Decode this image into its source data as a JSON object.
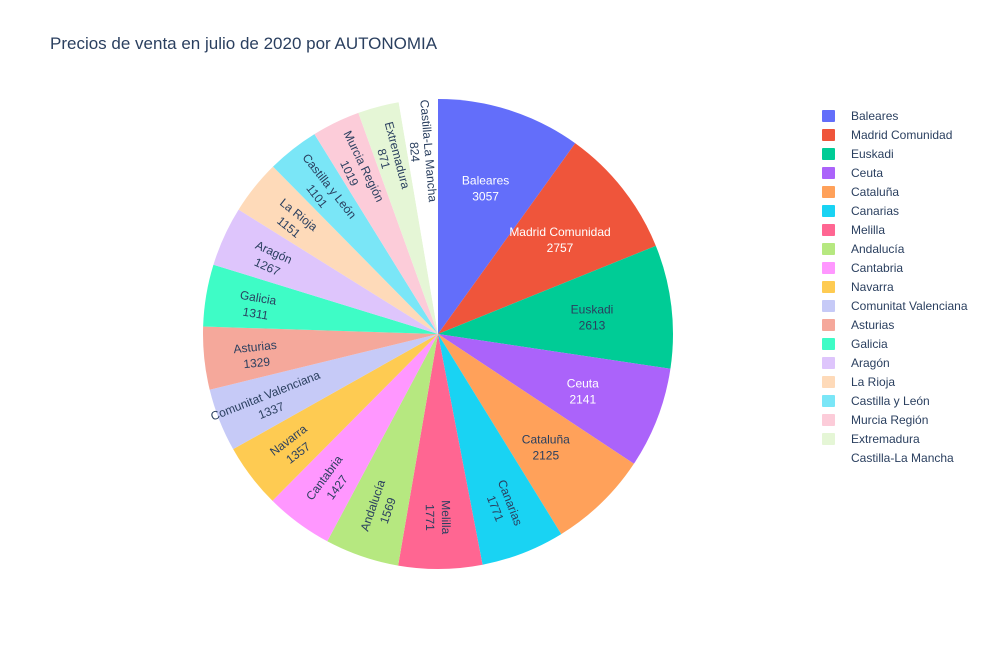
{
  "chart_data": {
    "type": "pie",
    "title": "Precios de venta en julio de 2020 por AUTONOMIA",
    "labels": [
      "Baleares",
      "Madrid Comunidad",
      "Euskadi",
      "Ceuta",
      "Cataluña",
      "Canarias",
      "Melilla",
      "Andalucía",
      "Cantabria",
      "Navarra",
      "Comunitat Valenciana",
      "Asturias",
      "Galicia",
      "Aragón",
      "La Rioja",
      "Castilla y León",
      "Murcia Región",
      "Extremadura",
      "Castilla-La Mancha"
    ],
    "values": [
      3057,
      2757,
      2613,
      2141,
      2125,
      1771,
      1771,
      1569,
      1427,
      1357,
      1337,
      1329,
      1311,
      1267,
      1151,
      1101,
      1019,
      871,
      824
    ],
    "colors": [
      "#636efa",
      "#EF553B",
      "#00cc96",
      "#ab63fa",
      "#FFA15A",
      "#19d3f3",
      "#FF6692",
      "#B6E880",
      "#FF97FF",
      "#FECB52",
      "#c6caf7",
      "#f5a89b",
      "#3efcc6",
      "#dec5fc",
      "#fedab9",
      "#7ae6f7",
      "#fcccd9",
      "#e5f6d6",
      "#ffffff"
    ],
    "legend_position": "right",
    "text_info": "label+value"
  }
}
